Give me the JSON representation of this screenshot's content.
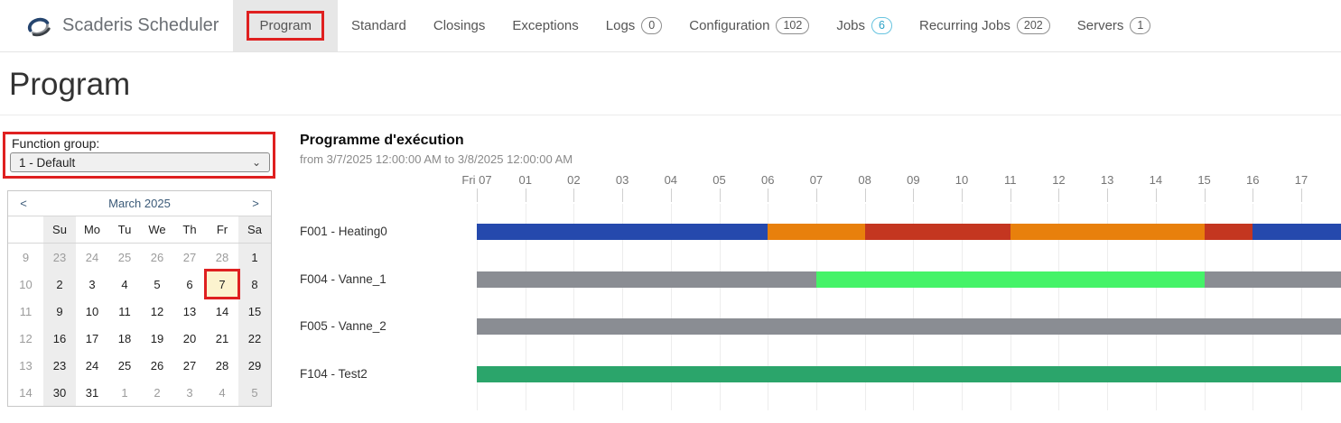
{
  "app": {
    "brand": "Scaderis Scheduler"
  },
  "nav": {
    "items": [
      {
        "label": "Program",
        "active": true
      },
      {
        "label": "Standard"
      },
      {
        "label": "Closings"
      },
      {
        "label": "Exceptions"
      },
      {
        "label": "Logs",
        "badge": "0"
      },
      {
        "label": "Configuration",
        "badge": "102"
      },
      {
        "label": "Jobs",
        "badge": "6",
        "badge_style": "info"
      },
      {
        "label": "Recurring Jobs",
        "badge": "202"
      },
      {
        "label": "Servers",
        "badge": "1"
      }
    ]
  },
  "page": {
    "title": "Program"
  },
  "function_group": {
    "label": "Function group:",
    "selected": "1 - Default",
    "chevron": "⌄"
  },
  "calendar": {
    "prev": "<",
    "next": ">",
    "month_label": "March 2025",
    "day_headers": [
      "Su",
      "Mo",
      "Tu",
      "We",
      "Th",
      "Fr",
      "Sa"
    ],
    "weeks": [
      {
        "num": "9",
        "days": [
          {
            "d": "23",
            "muted": true
          },
          {
            "d": "24",
            "muted": true
          },
          {
            "d": "25",
            "muted": true
          },
          {
            "d": "26",
            "muted": true
          },
          {
            "d": "27",
            "muted": true
          },
          {
            "d": "28",
            "muted": true
          },
          {
            "d": "1"
          }
        ]
      },
      {
        "num": "10",
        "days": [
          {
            "d": "2"
          },
          {
            "d": "3"
          },
          {
            "d": "4"
          },
          {
            "d": "5"
          },
          {
            "d": "6"
          },
          {
            "d": "7",
            "selected": true
          },
          {
            "d": "8"
          }
        ]
      },
      {
        "num": "11",
        "days": [
          {
            "d": "9"
          },
          {
            "d": "10"
          },
          {
            "d": "11"
          },
          {
            "d": "12"
          },
          {
            "d": "13"
          },
          {
            "d": "14"
          },
          {
            "d": "15"
          }
        ]
      },
      {
        "num": "12",
        "days": [
          {
            "d": "16"
          },
          {
            "d": "17"
          },
          {
            "d": "18"
          },
          {
            "d": "19"
          },
          {
            "d": "20"
          },
          {
            "d": "21"
          },
          {
            "d": "22"
          }
        ]
      },
      {
        "num": "13",
        "days": [
          {
            "d": "23"
          },
          {
            "d": "24"
          },
          {
            "d": "25"
          },
          {
            "d": "26"
          },
          {
            "d": "27"
          },
          {
            "d": "28"
          },
          {
            "d": "29"
          }
        ]
      },
      {
        "num": "14",
        "days": [
          {
            "d": "30"
          },
          {
            "d": "31"
          },
          {
            "d": "1",
            "muted": true
          },
          {
            "d": "2",
            "muted": true
          },
          {
            "d": "3",
            "muted": true
          },
          {
            "d": "4",
            "muted": true
          },
          {
            "d": "5",
            "muted": true
          }
        ]
      }
    ]
  },
  "chart_data": {
    "type": "gantt",
    "title": "Programme d'exécution",
    "subtitle": "from 3/7/2025 12:00:00 AM to 3/8/2025 12:00:00 AM",
    "axis": {
      "unit": "hour",
      "visible_hours": 17.82,
      "ticks": [
        {
          "hour": 0,
          "label": "Fri 07"
        },
        {
          "hour": 1,
          "label": "01"
        },
        {
          "hour": 2,
          "label": "02"
        },
        {
          "hour": 3,
          "label": "03"
        },
        {
          "hour": 4,
          "label": "04"
        },
        {
          "hour": 5,
          "label": "05"
        },
        {
          "hour": 6,
          "label": "06"
        },
        {
          "hour": 7,
          "label": "07"
        },
        {
          "hour": 8,
          "label": "08"
        },
        {
          "hour": 9,
          "label": "09"
        },
        {
          "hour": 10,
          "label": "10"
        },
        {
          "hour": 11,
          "label": "11"
        },
        {
          "hour": 12,
          "label": "12"
        },
        {
          "hour": 13,
          "label": "13"
        },
        {
          "hour": 14,
          "label": "14"
        },
        {
          "hour": 15,
          "label": "15"
        },
        {
          "hour": 16,
          "label": "16"
        },
        {
          "hour": 17,
          "label": "17"
        }
      ]
    },
    "palette": {
      "blue": "#2549ad",
      "orange": "#e8800c",
      "red": "#c43620",
      "gray": "#8a8d93",
      "bright_green": "#45f368",
      "green": "#2ba56b"
    },
    "rows": [
      {
        "label": "F001 - Heating0",
        "segments": [
          {
            "start": 0,
            "end": 6,
            "color": "blue"
          },
          {
            "start": 6,
            "end": 8,
            "color": "orange"
          },
          {
            "start": 8,
            "end": 11,
            "color": "red"
          },
          {
            "start": 11,
            "end": 15,
            "color": "orange"
          },
          {
            "start": 15,
            "end": 16,
            "color": "red"
          },
          {
            "start": 16,
            "end": 17.82,
            "color": "blue"
          }
        ]
      },
      {
        "label": "F004 - Vanne_1",
        "segments": [
          {
            "start": 0,
            "end": 7,
            "color": "gray"
          },
          {
            "start": 7,
            "end": 15,
            "color": "bright_green"
          },
          {
            "start": 15,
            "end": 17.82,
            "color": "gray"
          }
        ]
      },
      {
        "label": "F005 - Vanne_2",
        "segments": [
          {
            "start": 0,
            "end": 17.82,
            "color": "gray"
          }
        ]
      },
      {
        "label": "F104 - Test2",
        "segments": [
          {
            "start": 0,
            "end": 17.82,
            "color": "green"
          }
        ]
      }
    ]
  },
  "annotation": {
    "color": "#df2020"
  }
}
